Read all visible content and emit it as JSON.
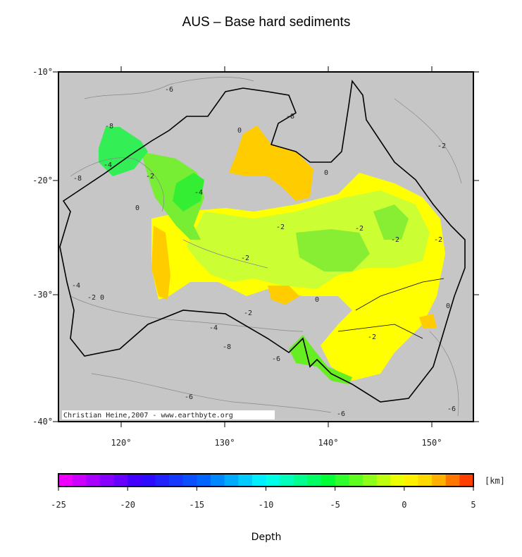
{
  "title": "AUS – Base hard sediments",
  "map": {
    "lat_labels": [
      "-10°",
      "-20°",
      "-30°",
      "-40°"
    ],
    "lon_labels": [
      "120°",
      "130°",
      "140°",
      "150°"
    ],
    "contour_labels": [
      "-6",
      "-8",
      "-4",
      "-8",
      "-2",
      "-4",
      "0",
      "0",
      "-2",
      "-2",
      "-2",
      "-2",
      "-2",
      "-2",
      "0",
      "-4",
      "-2",
      "0",
      "-2",
      "-4",
      "-8",
      "-6",
      "-2",
      "0",
      "-8",
      "-6",
      "-6",
      "-6",
      "0"
    ],
    "credit": "Christian Heine,2007 - www.earthbyte.org"
  },
  "colorbar": {
    "ticks": [
      -25,
      -20,
      -15,
      -10,
      -5,
      0,
      5
    ],
    "unit": "[km]",
    "label": "Depth"
  }
}
